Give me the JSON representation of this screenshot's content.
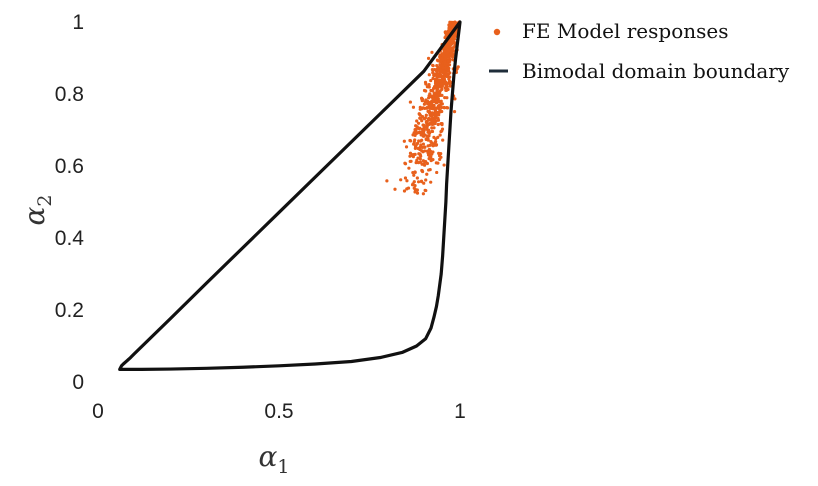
{
  "chart_data": {
    "type": "scatter",
    "title": "",
    "xlabel": "α",
    "xlabel_sub": "1",
    "ylabel": "α",
    "ylabel_sub": "2",
    "xlim": [
      0,
      1
    ],
    "ylim": [
      0,
      1
    ],
    "xticks": [
      0,
      0.5,
      1
    ],
    "xtick_labels": [
      "0",
      "0.5",
      "1"
    ],
    "yticks": [
      0,
      0.2,
      0.4,
      0.6,
      0.8,
      1
    ],
    "ytick_labels": [
      "0",
      "0.2",
      "0.4",
      "0.6",
      "0.8",
      "1"
    ],
    "grid": false,
    "legend_position": "outside-top-right",
    "colors": {
      "points": "#e8601c",
      "boundary": "#111111",
      "legend_line": "#1f2d3a"
    },
    "series": [
      {
        "name": "FE Model responses",
        "kind": "scatter",
        "cloud": {
          "n": 900,
          "y_range": [
            0.5,
            1.0
          ],
          "x_center_at_ymin": 0.865,
          "x_center_at_ymax": 0.985,
          "x_spread_at_ymin": 0.065,
          "x_spread_at_ymax": 0.012
        }
      },
      {
        "name": "Bimodal domain  boundary",
        "kind": "line",
        "points": [
          [
            0.06,
            0.035
          ],
          [
            0.065,
            0.045
          ],
          [
            0.07,
            0.05
          ],
          [
            0.08,
            0.059
          ],
          [
            0.09,
            0.068
          ],
          [
            0.1,
            0.078
          ],
          [
            0.2,
            0.176
          ],
          [
            0.3,
            0.275
          ],
          [
            0.4,
            0.373
          ],
          [
            0.5,
            0.471
          ],
          [
            0.6,
            0.569
          ],
          [
            0.7,
            0.667
          ],
          [
            0.8,
            0.765
          ],
          [
            0.9,
            0.863
          ],
          [
            1.0,
            1.0
          ],
          [
            0.994,
            0.95
          ],
          [
            0.988,
            0.9
          ],
          [
            0.983,
            0.85
          ],
          [
            0.979,
            0.8
          ],
          [
            0.975,
            0.75
          ],
          [
            0.972,
            0.7
          ],
          [
            0.969,
            0.65
          ],
          [
            0.966,
            0.6
          ],
          [
            0.963,
            0.55
          ],
          [
            0.961,
            0.5
          ],
          [
            0.958,
            0.45
          ],
          [
            0.955,
            0.4
          ],
          [
            0.952,
            0.35
          ],
          [
            0.948,
            0.3
          ],
          [
            0.944,
            0.27
          ],
          [
            0.94,
            0.24
          ],
          [
            0.935,
            0.21
          ],
          [
            0.928,
            0.18
          ],
          [
            0.92,
            0.15
          ],
          [
            0.905,
            0.12
          ],
          [
            0.88,
            0.1
          ],
          [
            0.84,
            0.082
          ],
          [
            0.78,
            0.068
          ],
          [
            0.7,
            0.057
          ],
          [
            0.6,
            0.05
          ],
          [
            0.5,
            0.045
          ],
          [
            0.4,
            0.041
          ],
          [
            0.3,
            0.038
          ],
          [
            0.2,
            0.036
          ],
          [
            0.12,
            0.035
          ],
          [
            0.06,
            0.035
          ]
        ]
      }
    ]
  }
}
